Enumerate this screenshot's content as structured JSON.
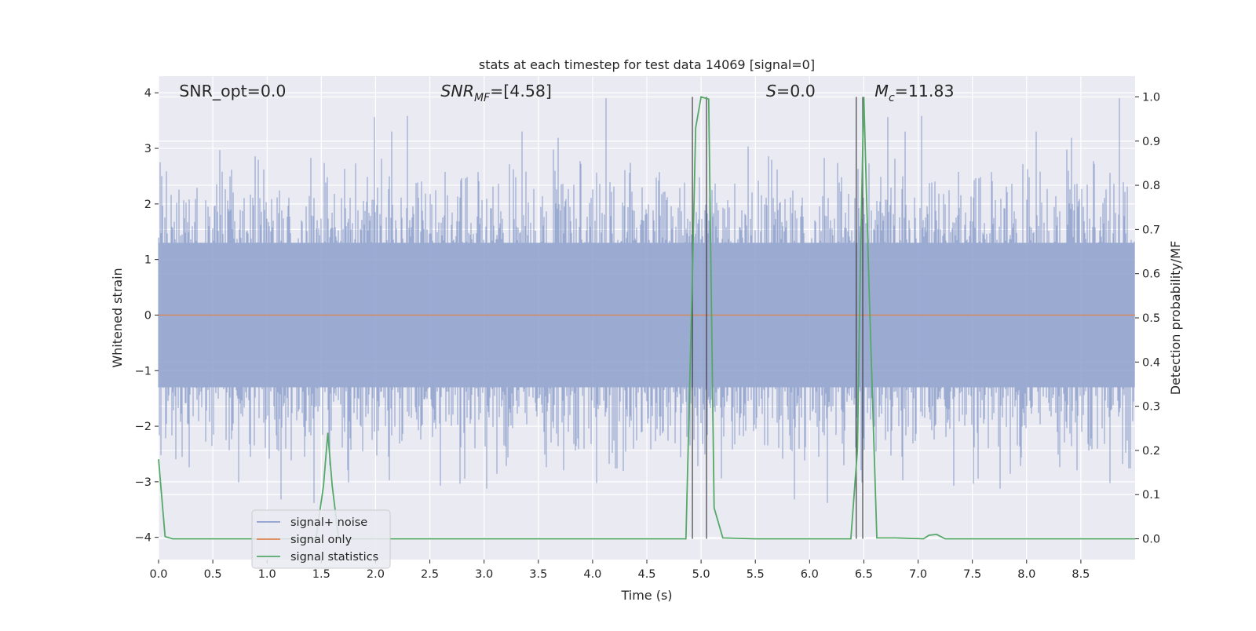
{
  "chart_data": {
    "type": "line",
    "title": "stats at each timestep for test data 14069 [signal=0]",
    "xlabel": "Time (s)",
    "ylabel": "Whitened strain",
    "y2label": "Detection probability/MF",
    "xlim": [
      0,
      9.0
    ],
    "ylim": [
      -4.4,
      4.3
    ],
    "y2lim": [
      -0.047,
      1.047
    ],
    "grid": true,
    "x_ticks": [
      "0.0",
      "0.5",
      "1.0",
      "1.5",
      "2.0",
      "2.5",
      "3.0",
      "3.5",
      "4.0",
      "4.5",
      "5.0",
      "5.5",
      "6.0",
      "6.5",
      "7.0",
      "7.5",
      "8.0",
      "8.5"
    ],
    "y_ticks": [
      "4",
      "3",
      "2",
      "1",
      "0",
      "−1",
      "−2",
      "−3",
      "−4"
    ],
    "y2_ticks": [
      "1.0",
      "0.9",
      "0.8",
      "0.7",
      "0.6",
      "0.5",
      "0.4",
      "0.3",
      "0.2",
      "0.1",
      "0.0"
    ],
    "annotations": [
      {
        "text": "SNR_opt=0.0",
        "x": 0.19
      },
      {
        "text": "SNR",
        "sub": "MF",
        "suffix": "=[4.58]",
        "italic": true,
        "x": 2.6
      },
      {
        "text": "S",
        "suffix": "=0.0",
        "italic": true,
        "x": 5.6
      },
      {
        "text": "M",
        "sub": "c",
        "suffix": "=11.83",
        "italic": true,
        "x": 6.6
      }
    ],
    "legend": {
      "position": "lower-left",
      "entries": [
        {
          "label": "signal+ noise",
          "color": "#8c9fcb"
        },
        {
          "label": "signal only",
          "color": "#dd8452"
        },
        {
          "label": "signal statistics",
          "color": "#55a868"
        }
      ]
    },
    "series": [
      {
        "name": "signal+ noise",
        "color": "#8c9fcb",
        "axis": "left",
        "kind": "noise",
        "sigma": 1.0,
        "peak_max": 3.9,
        "peak_min": -4.0
      },
      {
        "name": "signal only",
        "color": "#dd8452",
        "axis": "left",
        "x": [
          0,
          9.0
        ],
        "y": [
          0,
          0
        ]
      },
      {
        "name": "signal statistics",
        "color": "#55a868",
        "axis": "right",
        "x": [
          0.0,
          0.06,
          0.13,
          0.25,
          0.5,
          1.0,
          1.45,
          1.52,
          1.56,
          1.6,
          1.66,
          1.75,
          2.0,
          3.0,
          4.0,
          4.5,
          4.86,
          4.92,
          4.95,
          5.0,
          5.07,
          5.12,
          5.2,
          5.5,
          6.0,
          6.38,
          6.44,
          6.47,
          6.5,
          6.55,
          6.62,
          6.8,
          7.05,
          7.1,
          7.17,
          7.25,
          7.5,
          8.0,
          8.5,
          9.0
        ],
        "y": [
          0.18,
          0.005,
          0.0,
          0.0,
          0.0,
          0.0,
          0.0,
          0.12,
          0.24,
          0.12,
          0.0,
          0.0,
          0.0,
          0.0,
          0.0,
          0.0,
          0.0,
          0.6,
          0.93,
          1.0,
          0.995,
          0.07,
          0.002,
          0.0,
          0.0,
          0.0,
          0.2,
          0.65,
          1.0,
          0.55,
          0.002,
          0.002,
          0.0,
          0.008,
          0.01,
          0.0,
          0.0,
          0.0,
          0.0,
          0.0
        ]
      }
    ],
    "vlines": [
      4.92,
      5.05,
      6.43,
      6.49
    ]
  }
}
